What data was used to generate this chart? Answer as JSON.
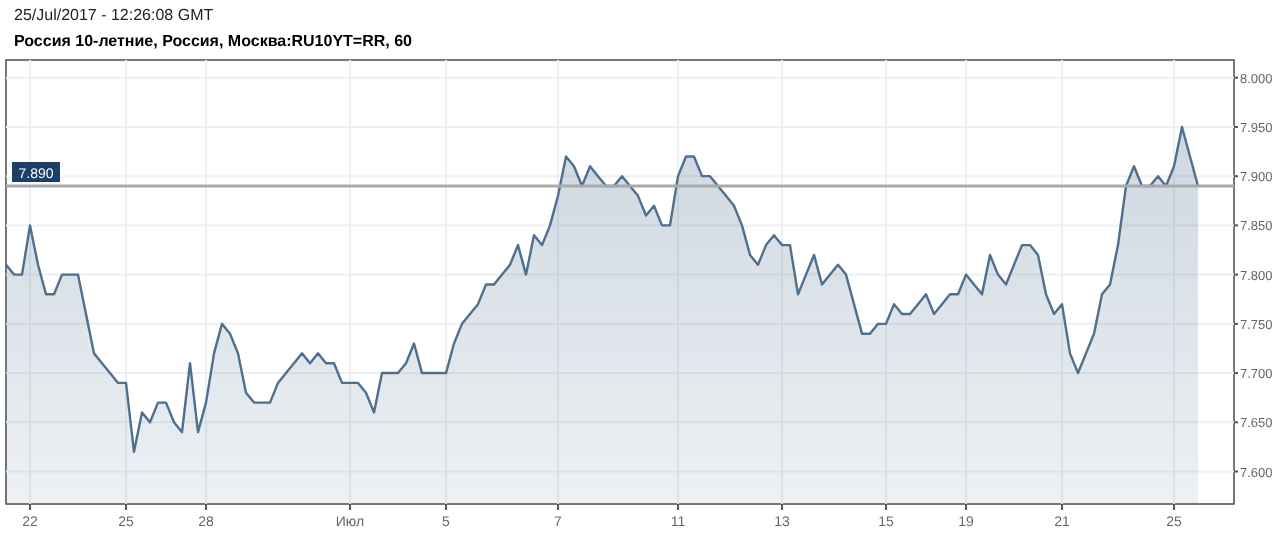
{
  "chart_data": {
    "type": "area",
    "title": "Россия 10-летние, Россия, Москва:RU10YT=RR, 60",
    "annotations": [
      "25/Jul/2017 - 12:26:08 GMT"
    ],
    "categories": [
      null,
      null,
      null,
      "22",
      null,
      null,
      null,
      null,
      null,
      null,
      null,
      null,
      null,
      null,
      null,
      "25",
      null,
      null,
      null,
      null,
      null,
      null,
      null,
      null,
      null,
      "28",
      null,
      null,
      null,
      null,
      null,
      null,
      null,
      null,
      null,
      null,
      null,
      null,
      null,
      null,
      null,
      null,
      null,
      "Июл",
      null,
      null,
      null,
      null,
      null,
      null,
      null,
      null,
      null,
      null,
      null,
      "5",
      null,
      null,
      null,
      null,
      null,
      null,
      null,
      null,
      null,
      null,
      null,
      null,
      null,
      "7",
      null,
      null,
      null,
      null,
      null,
      null,
      null,
      null,
      null,
      null,
      null,
      null,
      null,
      null,
      "11",
      null,
      null,
      null,
      null,
      null,
      null,
      null,
      null,
      null,
      null,
      null,
      null,
      "13",
      null,
      null,
      null,
      null,
      null,
      null,
      null,
      null,
      null,
      null,
      null,
      null,
      "15",
      null,
      null,
      null,
      null,
      null,
      null,
      null,
      null,
      null,
      "19",
      null,
      null,
      null,
      null,
      null,
      null,
      null,
      null,
      null,
      null,
      null,
      "21",
      null,
      null,
      null,
      null,
      null,
      null,
      null,
      null,
      null,
      null,
      null,
      null,
      null,
      "25",
      null,
      null,
      null
    ],
    "series": [
      {
        "color": "#4f6f8f",
        "values": [
          7.81,
          7.8,
          7.8,
          7.85,
          7.81,
          7.78,
          7.78,
          7.8,
          7.8,
          7.8,
          7.76,
          7.72,
          7.71,
          7.7,
          7.69,
          7.69,
          7.62,
          7.66,
          7.65,
          7.67,
          7.67,
          7.65,
          7.64,
          7.71,
          7.64,
          7.67,
          7.72,
          7.75,
          7.74,
          7.72,
          7.68,
          7.67,
          7.67,
          7.67,
          7.69,
          7.7,
          7.71,
          7.72,
          7.71,
          7.72,
          7.71,
          7.71,
          7.69,
          7.69,
          7.69,
          7.68,
          7.66,
          7.7,
          7.7,
          7.7,
          7.71,
          7.73,
          7.7,
          7.7,
          7.7,
          7.7,
          7.73,
          7.75,
          7.76,
          7.77,
          7.79,
          7.79,
          7.8,
          7.81,
          7.83,
          7.8,
          7.84,
          7.83,
          7.85,
          7.88,
          7.92,
          7.91,
          7.89,
          7.91,
          7.9,
          7.89,
          7.89,
          7.9,
          7.89,
          7.88,
          7.86,
          7.87,
          7.85,
          7.85,
          7.9,
          7.92,
          7.92,
          7.9,
          7.9,
          7.89,
          7.88,
          7.87,
          7.85,
          7.82,
          7.81,
          7.83,
          7.84,
          7.83,
          7.83,
          7.78,
          7.8,
          7.82,
          7.79,
          7.8,
          7.81,
          7.8,
          7.77,
          7.74,
          7.74,
          7.75,
          7.75,
          7.77,
          7.76,
          7.76,
          7.77,
          7.78,
          7.76,
          7.77,
          7.78,
          7.78,
          7.8,
          7.79,
          7.78,
          7.82,
          7.8,
          7.79,
          7.81,
          7.83,
          7.83,
          7.82,
          7.78,
          7.76,
          7.77,
          7.72,
          7.7,
          7.72,
          7.74,
          7.78,
          7.79,
          7.83,
          7.89,
          7.91,
          7.89,
          7.89,
          7.9,
          7.89,
          7.91,
          7.95,
          7.92,
          7.89
        ]
      }
    ],
    "ylim": [
      7.567,
      8.018
    ],
    "yticks": [
      {
        "value": 7.6,
        "label": "7.600"
      },
      {
        "value": 7.65,
        "label": "7.650"
      },
      {
        "value": 7.7,
        "label": "7.700"
      },
      {
        "value": 7.75,
        "label": "7.750"
      },
      {
        "value": 7.8,
        "label": "7.800"
      },
      {
        "value": 7.85,
        "label": "7.850"
      },
      {
        "value": 7.9,
        "label": "7.900"
      },
      {
        "value": 7.95,
        "label": "7.950"
      },
      {
        "value": 8,
        "label": "8.000"
      }
    ],
    "grid": true,
    "ref_lines": [
      {
        "axis": "y",
        "value": 7.89,
        "label": "7.890"
      }
    ]
  }
}
